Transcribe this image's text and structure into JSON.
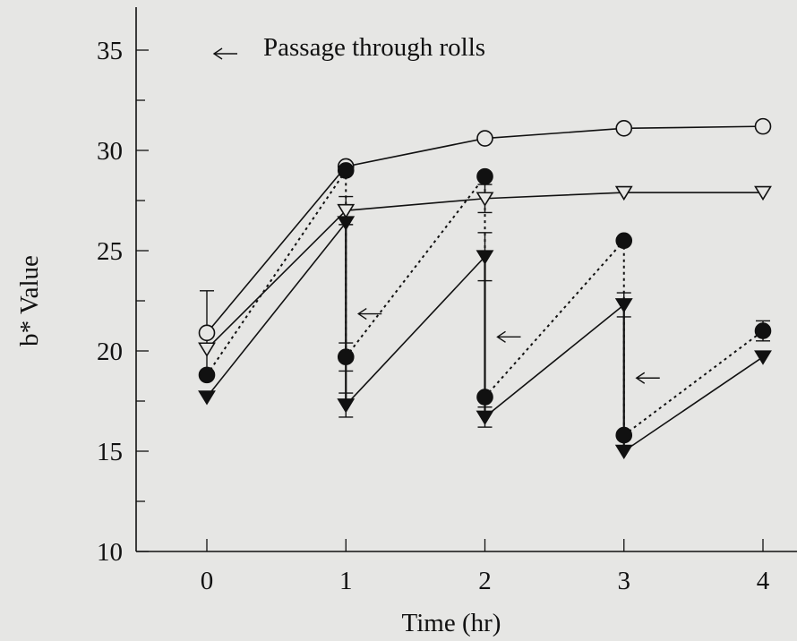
{
  "chart_data": {
    "type": "line",
    "xlabel": "Time (hr)",
    "ylabel": "b* Value",
    "x_ticks": [
      "0",
      "1",
      "2",
      "3",
      "4"
    ],
    "y_ticks": [
      "10",
      "15",
      "20",
      "25",
      "30",
      "35"
    ],
    "xlim": [
      0,
      4
    ],
    "ylim": [
      10,
      37
    ],
    "grid": false,
    "legend": {
      "placement": "top-left",
      "text": "Passage through rolls",
      "symbol": "left-arrow-icon"
    },
    "passage_times": [
      1,
      2,
      3
    ],
    "series": [
      {
        "marker": "open-circle",
        "line": "solid",
        "points": [
          [
            0,
            20.9,
            2.1
          ],
          [
            1,
            29.2,
            null
          ],
          [
            2,
            30.6,
            null
          ],
          [
            3,
            31.1,
            null
          ],
          [
            4,
            31.2,
            null
          ]
        ],
        "segments": [
          [
            [
              0,
              20.9
            ],
            [
              1,
              29.2
            ],
            [
              2,
              30.6
            ],
            [
              3,
              31.1
            ],
            [
              4,
              31.2
            ]
          ]
        ]
      },
      {
        "marker": "open-triangle-down",
        "line": "solid",
        "points": [
          [
            0,
            20.1,
            null
          ],
          [
            1,
            27.0,
            0.7
          ],
          [
            2,
            27.6,
            0.7
          ],
          [
            3,
            27.9,
            null
          ],
          [
            4,
            27.9,
            null
          ]
        ],
        "segments": [
          [
            [
              0,
              20.1
            ],
            [
              1,
              27.0
            ],
            [
              2,
              27.6
            ],
            [
              3,
              27.9
            ],
            [
              4,
              27.9
            ]
          ]
        ]
      },
      {
        "marker": "filled-circle",
        "line": "dotted",
        "points": [
          [
            0,
            18.8,
            null
          ],
          [
            1,
            29.0,
            null
          ],
          [
            1,
            19.7,
            0.7
          ],
          [
            2,
            28.7,
            null
          ],
          [
            2,
            17.7,
            null
          ],
          [
            3,
            25.5,
            null
          ],
          [
            3,
            15.8,
            null
          ],
          [
            4,
            21.0,
            0.5
          ]
        ],
        "segments": [
          [
            [
              0,
              18.8
            ],
            [
              1,
              29.0
            ]
          ],
          [
            [
              1,
              19.7
            ],
            [
              2,
              28.7
            ]
          ],
          [
            [
              2,
              17.7
            ],
            [
              3,
              25.5
            ]
          ],
          [
            [
              3,
              15.8
            ],
            [
              4,
              21.0
            ]
          ]
        ]
      },
      {
        "marker": "filled-triangle-down",
        "line": "solid",
        "points": [
          [
            0,
            17.7,
            null
          ],
          [
            1,
            26.4,
            null
          ],
          [
            1,
            17.3,
            0.6
          ],
          [
            2,
            24.7,
            1.2
          ],
          [
            2,
            16.7,
            0.5
          ],
          [
            3,
            22.3,
            0.6
          ],
          [
            3,
            15.0,
            null
          ],
          [
            4,
            19.7,
            null
          ]
        ],
        "segments": [
          [
            [
              0,
              17.7
            ],
            [
              1,
              26.4
            ]
          ],
          [
            [
              1,
              17.3
            ],
            [
              2,
              24.7
            ]
          ],
          [
            [
              2,
              16.7
            ],
            [
              3,
              22.3
            ]
          ],
          [
            [
              3,
              15.0
            ],
            [
              4,
              19.7
            ]
          ]
        ]
      }
    ]
  }
}
